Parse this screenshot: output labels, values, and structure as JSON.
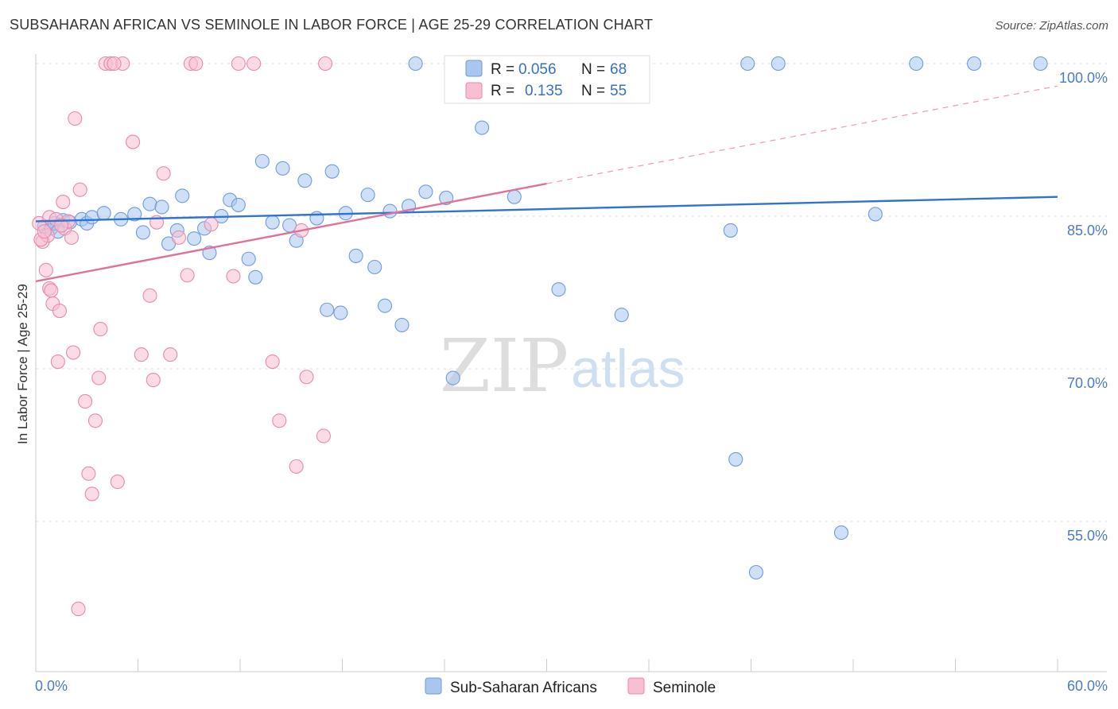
{
  "title": "SUBSAHARAN AFRICAN VS SEMINOLE IN LABOR FORCE | AGE 25-29 CORRELATION CHART",
  "source": "Source: ZipAtlas.com",
  "watermark": {
    "zip": "ZIP",
    "atlas": "atlas"
  },
  "legend_top": [
    {
      "r_label": "R =",
      "r_value": "0.056",
      "n_label": "N =",
      "n_value": "68",
      "color": "#a8c6ee",
      "stroke": "#6f9be0"
    },
    {
      "r_label": "R =",
      "r_value": "0.135",
      "n_label": "N =",
      "n_value": "55",
      "color": "#f7bfd1",
      "stroke": "#e88aab"
    }
  ],
  "legend_bottom": [
    {
      "label": "Sub-Saharan Africans",
      "color": "#a8c6ee",
      "stroke": "#6f9be0"
    },
    {
      "label": "Seminole",
      "color": "#f7bfd1",
      "stroke": "#e88aab"
    }
  ],
  "chart_data": {
    "type": "scatter",
    "title": "SUBSAHARAN AFRICAN VS SEMINOLE IN LABOR FORCE | AGE 25-29 CORRELATION CHART",
    "xlabel": "",
    "ylabel": "In Labor Force | Age 25-29",
    "xlim": [
      0,
      60
    ],
    "ylim": [
      40,
      101
    ],
    "x_tick_labels": [
      {
        "value": 0,
        "label": "0.0%"
      },
      {
        "value": 60,
        "label": "60.0%"
      }
    ],
    "y_tick_labels": [
      {
        "value": 100,
        "label": "100.0%"
      },
      {
        "value": 85,
        "label": "85.0%"
      },
      {
        "value": 70,
        "label": "70.0%"
      },
      {
        "value": 55,
        "label": "55.0%"
      }
    ],
    "grid": true,
    "legend_position": "top-center",
    "series": [
      {
        "name": "Sub-Saharan Africans",
        "color": "#a8c6ee",
        "stroke": "#6f9be0",
        "trend": {
          "x": [
            0,
            60
          ],
          "y": [
            84.5,
            86.9
          ],
          "color": "#2f74d0",
          "dashed_extension": false
        },
        "points": [
          [
            0.5,
            84.0
          ],
          [
            0.9,
            83.8
          ],
          [
            1.1,
            84.3
          ],
          [
            1.3,
            83.5
          ],
          [
            1.6,
            84.6
          ],
          [
            2.0,
            84.4
          ],
          [
            2.7,
            84.7
          ],
          [
            3.0,
            84.3
          ],
          [
            3.3,
            84.9
          ],
          [
            4.0,
            85.3
          ],
          [
            5.0,
            84.7
          ],
          [
            5.8,
            85.2
          ],
          [
            6.3,
            83.4
          ],
          [
            6.7,
            86.2
          ],
          [
            7.4,
            85.9
          ],
          [
            7.8,
            82.3
          ],
          [
            8.3,
            83.6
          ],
          [
            8.6,
            87.0
          ],
          [
            9.3,
            82.8
          ],
          [
            9.9,
            83.8
          ],
          [
            10.2,
            81.4
          ],
          [
            10.9,
            85.0
          ],
          [
            11.4,
            86.6
          ],
          [
            11.9,
            86.1
          ],
          [
            12.5,
            80.8
          ],
          [
            12.9,
            79.0
          ],
          [
            13.3,
            90.4
          ],
          [
            13.9,
            84.4
          ],
          [
            14.5,
            89.7
          ],
          [
            14.9,
            84.1
          ],
          [
            15.3,
            82.6
          ],
          [
            15.8,
            88.5
          ],
          [
            16.5,
            84.8
          ],
          [
            17.1,
            75.8
          ],
          [
            17.4,
            89.4
          ],
          [
            17.9,
            75.5
          ],
          [
            18.2,
            85.3
          ],
          [
            18.8,
            81.1
          ],
          [
            19.5,
            87.1
          ],
          [
            19.9,
            80.0
          ],
          [
            20.5,
            76.2
          ],
          [
            20.8,
            85.5
          ],
          [
            21.5,
            74.3
          ],
          [
            21.9,
            86.0
          ],
          [
            22.3,
            100.0
          ],
          [
            22.9,
            87.4
          ],
          [
            24.1,
            86.8
          ],
          [
            24.5,
            69.1
          ],
          [
            24.6,
            100.0
          ],
          [
            25.7,
            100.0
          ],
          [
            26.2,
            93.7
          ],
          [
            26.9,
            100.0
          ],
          [
            28.1,
            86.9
          ],
          [
            30.7,
            77.8
          ],
          [
            30.9,
            100.0
          ],
          [
            33.0,
            100.0
          ],
          [
            34.0,
            100.0
          ],
          [
            34.4,
            75.3
          ],
          [
            40.8,
            83.6
          ],
          [
            41.1,
            61.1
          ],
          [
            41.8,
            100.0
          ],
          [
            42.3,
            50.0
          ],
          [
            43.6,
            100.0
          ],
          [
            47.3,
            53.9
          ],
          [
            49.3,
            85.2
          ],
          [
            51.7,
            100.0
          ],
          [
            55.1,
            100.0
          ],
          [
            59.0,
            100.0
          ]
        ]
      },
      {
        "name": "Seminole",
        "color": "#f7bfd1",
        "stroke": "#e88aab",
        "trend": {
          "x": [
            0,
            30
          ],
          "y": [
            78.6,
            88.2
          ],
          "color": "#e0719b",
          "dashed_extension": true,
          "dashed_to": {
            "x": 60,
            "y": 97.8
          }
        },
        "points": [
          [
            0.2,
            84.3
          ],
          [
            0.4,
            82.5
          ],
          [
            0.6,
            79.7
          ],
          [
            0.7,
            83.1
          ],
          [
            0.8,
            84.9
          ],
          [
            0.8,
            77.9
          ],
          [
            0.9,
            77.7
          ],
          [
            1.0,
            76.4
          ],
          [
            1.2,
            84.7
          ],
          [
            1.3,
            70.7
          ],
          [
            1.4,
            75.7
          ],
          [
            1.6,
            86.4
          ],
          [
            1.7,
            83.8
          ],
          [
            1.9,
            84.5
          ],
          [
            2.1,
            82.9
          ],
          [
            2.3,
            94.6
          ],
          [
            2.6,
            87.6
          ],
          [
            2.9,
            66.8
          ],
          [
            3.1,
            59.7
          ],
          [
            3.3,
            57.7
          ],
          [
            3.5,
            64.9
          ],
          [
            3.8,
            73.9
          ],
          [
            4.1,
            100.0
          ],
          [
            4.4,
            100.0
          ],
          [
            4.8,
            58.9
          ],
          [
            5.1,
            100.0
          ],
          [
            5.7,
            92.3
          ],
          [
            6.2,
            71.4
          ],
          [
            6.7,
            77.2
          ],
          [
            7.1,
            84.4
          ],
          [
            7.5,
            89.2
          ],
          [
            7.9,
            71.4
          ],
          [
            8.4,
            82.9
          ],
          [
            8.9,
            79.2
          ],
          [
            9.1,
            100.0
          ],
          [
            9.4,
            100.0
          ],
          [
            10.3,
            84.2
          ],
          [
            11.6,
            79.1
          ],
          [
            11.9,
            100.0
          ],
          [
            12.8,
            100.0
          ],
          [
            13.9,
            70.7
          ],
          [
            14.3,
            64.9
          ],
          [
            15.3,
            60.4
          ],
          [
            15.6,
            83.6
          ],
          [
            15.9,
            69.2
          ],
          [
            16.9,
            63.4
          ],
          [
            17.0,
            100.0
          ],
          [
            2.5,
            46.4
          ],
          [
            0.3,
            82.7
          ],
          [
            0.5,
            83.5
          ],
          [
            1.5,
            84.1
          ],
          [
            2.2,
            71.6
          ],
          [
            3.7,
            69.1
          ],
          [
            6.9,
            68.9
          ],
          [
            4.6,
            100.0
          ]
        ]
      }
    ]
  }
}
